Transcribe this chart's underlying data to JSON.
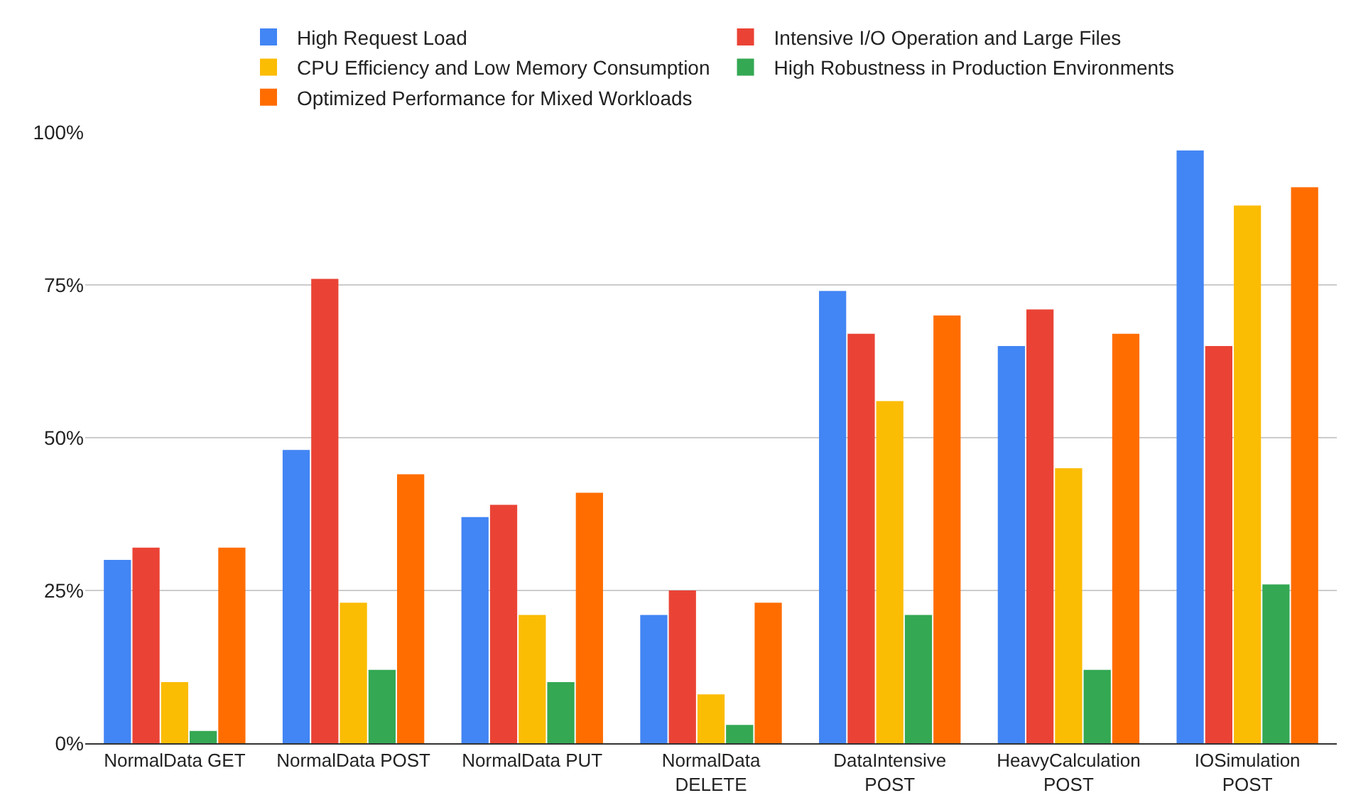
{
  "chart_data": {
    "type": "bar",
    "categories": [
      "NormalData GET",
      "NormalData POST",
      "NormalData PUT",
      "NormalData DELETE",
      "DataIntensive POST",
      "HeavyCalculation POST",
      "IOSimulation POST"
    ],
    "series": [
      {
        "name": "High Request Load",
        "color": "#4285f4",
        "values": [
          30,
          48,
          37,
          21,
          74,
          65,
          97
        ]
      },
      {
        "name": "Intensive I/O Operation and Large Files",
        "color": "#ea4335",
        "values": [
          32,
          76,
          39,
          25,
          67,
          71,
          65
        ]
      },
      {
        "name": "CPU Efficiency and Low Memory Consumption",
        "color": "#fbbc04",
        "values": [
          10,
          23,
          21,
          8,
          56,
          45,
          88
        ]
      },
      {
        "name": "High Robustness in Production Environments",
        "color": "#34a853",
        "values": [
          2,
          12,
          10,
          3,
          21,
          12,
          26
        ]
      },
      {
        "name": "Optimized Performance for Mixed Workloads",
        "color": "#ff6d01",
        "values": [
          32,
          44,
          41,
          23,
          70,
          67,
          91
        ]
      }
    ],
    "ylim": [
      0,
      100
    ],
    "yticks": [
      {
        "value": 0,
        "label": "0%"
      },
      {
        "value": 25,
        "label": "25%"
      },
      {
        "value": 50,
        "label": "50%"
      },
      {
        "value": 75,
        "label": "75%"
      },
      {
        "value": 100,
        "label": "100%"
      }
    ],
    "grid": "y",
    "legend": "top"
  }
}
